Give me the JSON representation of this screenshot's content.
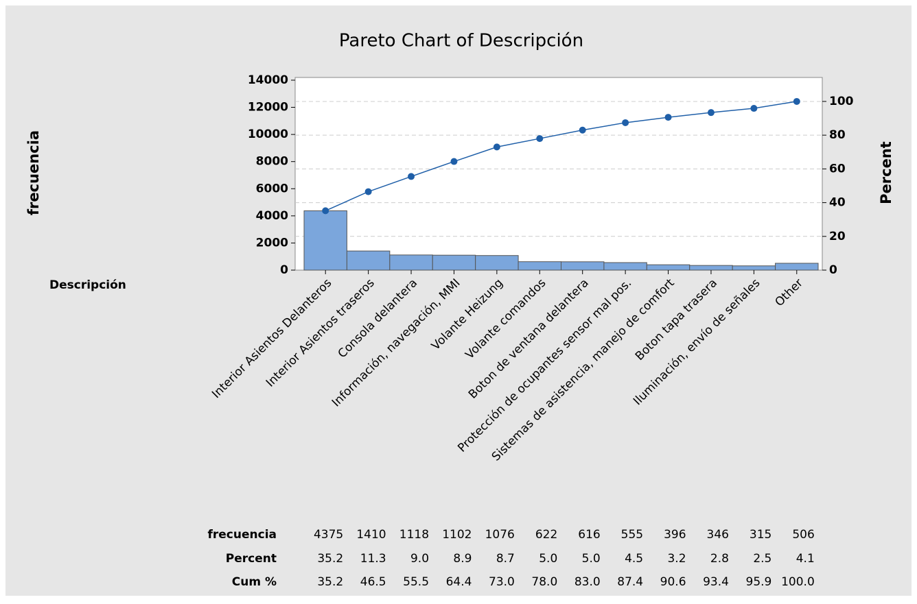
{
  "chart_data": {
    "type": "pareto",
    "title": "Pareto Chart of Descripción",
    "x_label": "Descripción",
    "y_label": "frecuencia",
    "y2_label": "Percent",
    "categories": [
      "Interior Asientos Delanteros",
      "Interior Asientos traseros",
      "Consola delantera",
      "Información, navegación, MMI",
      "Volante Heizung",
      "Volante comandos",
      "Boton de ventana delantera",
      "Protección de ocupantes sensor mal pos.",
      "Sistemas de asistencia, manejo de comfort",
      "Boton tapa trasera",
      "Iluminación, envío de señales",
      "Other"
    ],
    "series": [
      {
        "name": "frecuencia",
        "color": "#7ba6dc",
        "values": [
          4375,
          1410,
          1118,
          1102,
          1076,
          622,
          616,
          555,
          396,
          346,
          315,
          506
        ]
      },
      {
        "name": "Percent",
        "values": [
          35.2,
          11.3,
          9.0,
          8.9,
          8.7,
          5.0,
          5.0,
          4.5,
          3.2,
          2.8,
          2.5,
          4.1
        ],
        "value_labels": [
          "35.2",
          "11.3",
          "9.0",
          "8.9",
          "8.7",
          "5.0",
          "5.0",
          "4.5",
          "3.2",
          "2.8",
          "2.5",
          "4.1"
        ]
      },
      {
        "name": "Cum %",
        "color": "#1f5fa8",
        "axis": "y2",
        "values": [
          35.2,
          46.5,
          55.5,
          64.4,
          73.0,
          78.0,
          83.0,
          87.4,
          90.6,
          93.4,
          95.9,
          100.0
        ],
        "value_labels": [
          "35.2",
          "46.5",
          "55.5",
          "64.4",
          "73.0",
          "78.0",
          "83.0",
          "87.4",
          "90.6",
          "93.4",
          "95.9",
          "100.0"
        ]
      }
    ],
    "ylim": [
      0,
      14200
    ],
    "yticks": [
      0,
      2000,
      4000,
      6000,
      8000,
      10000,
      12000,
      14000
    ],
    "y2lim": [
      0,
      114.2
    ],
    "y2ticks": [
      0,
      20,
      40,
      60,
      80,
      100
    ],
    "grid": true
  }
}
